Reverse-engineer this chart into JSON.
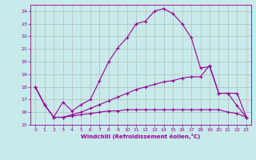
{
  "background_color": "#c8eaea",
  "grid_color": "#b0b0b0",
  "line_color": "#990099",
  "xlabel": "Windchill (Refroidissement éolien,°C)",
  "xlim": [
    -0.5,
    23.5
  ],
  "ylim": [
    15,
    24.5
  ],
  "yticks": [
    15,
    16,
    17,
    18,
    19,
    20,
    21,
    22,
    23,
    24
  ],
  "xticks": [
    0,
    1,
    2,
    3,
    4,
    5,
    6,
    7,
    8,
    9,
    10,
    11,
    12,
    13,
    14,
    15,
    16,
    17,
    18,
    19,
    20,
    21,
    22,
    23
  ],
  "series": [
    {
      "x": [
        0,
        1,
        2,
        3,
        4,
        5,
        6,
        7,
        8,
        9,
        10,
        11,
        12,
        13,
        14,
        15,
        16,
        17,
        18,
        19,
        20,
        21,
        22,
        23
      ],
      "y": [
        18.0,
        16.6,
        15.6,
        16.8,
        16.1,
        16.6,
        17.0,
        18.5,
        20.0,
        21.1,
        21.9,
        23.0,
        23.2,
        24.0,
        24.2,
        23.8,
        23.0,
        21.9,
        19.5,
        19.6,
        17.5,
        17.5,
        16.5,
        15.6
      ]
    },
    {
      "x": [
        0,
        1,
        2,
        3,
        4,
        5,
        6,
        7,
        8,
        9,
        10,
        11,
        12,
        13,
        14,
        15,
        16,
        17,
        18,
        19,
        20,
        21,
        22,
        23
      ],
      "y": [
        18.0,
        16.6,
        15.6,
        15.6,
        15.7,
        15.8,
        15.9,
        16.0,
        16.1,
        16.1,
        16.2,
        16.2,
        16.2,
        16.2,
        16.2,
        16.2,
        16.2,
        16.2,
        16.2,
        16.2,
        16.2,
        16.0,
        15.9,
        15.6
      ]
    },
    {
      "x": [
        0,
        1,
        2,
        3,
        4,
        5,
        6,
        7,
        8,
        9,
        10,
        11,
        12,
        13,
        14,
        15,
        16,
        17,
        18,
        19,
        20,
        21,
        22,
        23
      ],
      "y": [
        18.0,
        16.6,
        15.6,
        15.6,
        15.8,
        16.0,
        16.3,
        16.6,
        16.9,
        17.2,
        17.5,
        17.8,
        18.0,
        18.2,
        18.4,
        18.5,
        18.7,
        18.8,
        18.8,
        19.7,
        17.5,
        17.5,
        17.5,
        15.6
      ]
    }
  ]
}
